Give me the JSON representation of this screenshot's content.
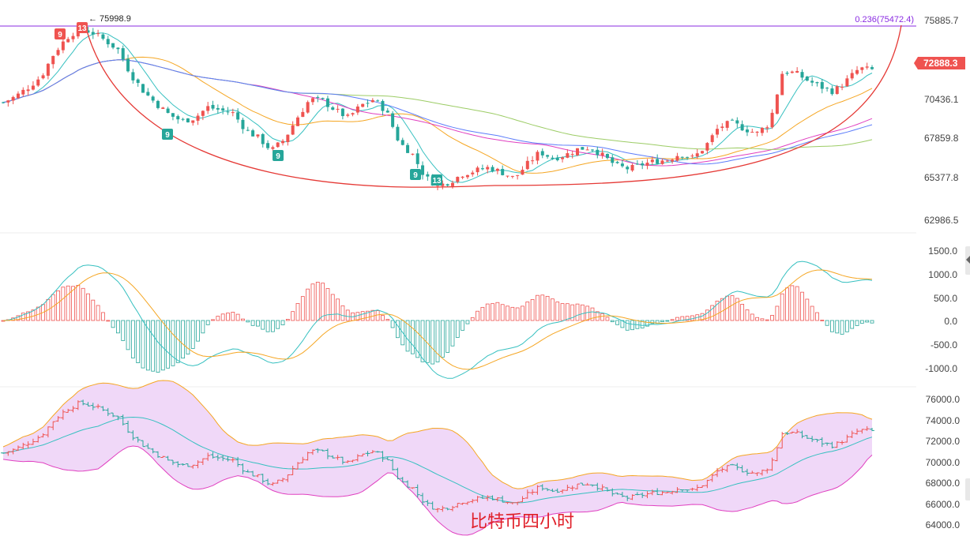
{
  "caption": "比特币四小时",
  "colors": {
    "up": "#ef5350",
    "down": "#26a69a",
    "fib": "#8a2be2",
    "arc": "#e53935",
    "bb_fill": "#f0d8f8",
    "bb_upper": "#f5a623",
    "bb_lower": "#e040c0",
    "bb_mid": "#36c0c0"
  },
  "price_pane": {
    "axis_ticks": [
      "75885.7",
      "72888.3",
      "70436.1",
      "67859.8",
      "65377.8",
      "62986.5"
    ],
    "current_price": "72888.3",
    "peak_label": "← 75998.9",
    "fib_label": "0.236(75472.4)",
    "td_labels": [
      {
        "text": "9",
        "kind": "sell"
      },
      {
        "text": "13",
        "kind": "sell"
      },
      {
        "text": "9",
        "kind": "buy"
      },
      {
        "text": "9",
        "kind": "buy"
      },
      {
        "text": "9",
        "kind": "buy"
      },
      {
        "text": "13",
        "kind": "buy"
      }
    ]
  },
  "macd_pane": {
    "axis_ticks": [
      "1500.0",
      "1000.0",
      "500.0",
      "0.0",
      "-500.0",
      "-1000.0"
    ]
  },
  "boll_pane": {
    "axis_ticks": [
      "76000.0",
      "74000.0",
      "72000.0",
      "70000.0",
      "68000.0",
      "66000.0",
      "64000.0"
    ]
  },
  "chart_data": {
    "type": "candlestick",
    "title": "",
    "panes": [
      "price_with_moving_averages",
      "macd",
      "bollinger_bands"
    ],
    "price_axis_ticks": [
      75885.7,
      72888.3,
      70436.1,
      67859.8,
      65377.8,
      62986.5
    ],
    "current_price": 72888.3,
    "annotated_high": 75998.9,
    "fibonacci_level": {
      "ratio": 0.236,
      "price": 75472.4
    },
    "close_path": [
      70800,
      71200,
      71800,
      72500,
      74000,
      75000,
      75600,
      75300,
      74800,
      74200,
      72600,
      71500,
      70700,
      70000,
      69600,
      69800,
      70500,
      70300,
      70100,
      69000,
      68500,
      67700,
      68400,
      69800,
      71000,
      70900,
      70300,
      69800,
      70600,
      71000,
      70200,
      68200,
      67500,
      66000,
      65400,
      65700,
      66200,
      66400,
      66600,
      66300,
      65900,
      66800,
      67600,
      67200,
      67400,
      67800,
      67900,
      67300,
      66700,
      66500,
      66800,
      67000,
      67100,
      67500,
      67200,
      68000,
      69200,
      69500,
      69100,
      68800,
      69500,
      72800,
      72700,
      72200,
      71800,
      71500,
      72200,
      73000,
      72900
    ],
    "macd_axis_ticks": [
      1500,
      1000,
      500,
      0,
      -500,
      -1000
    ],
    "bollinger_axis_ticks": [
      76000,
      74000,
      72000,
      70000,
      68000,
      66000,
      64000
    ]
  }
}
